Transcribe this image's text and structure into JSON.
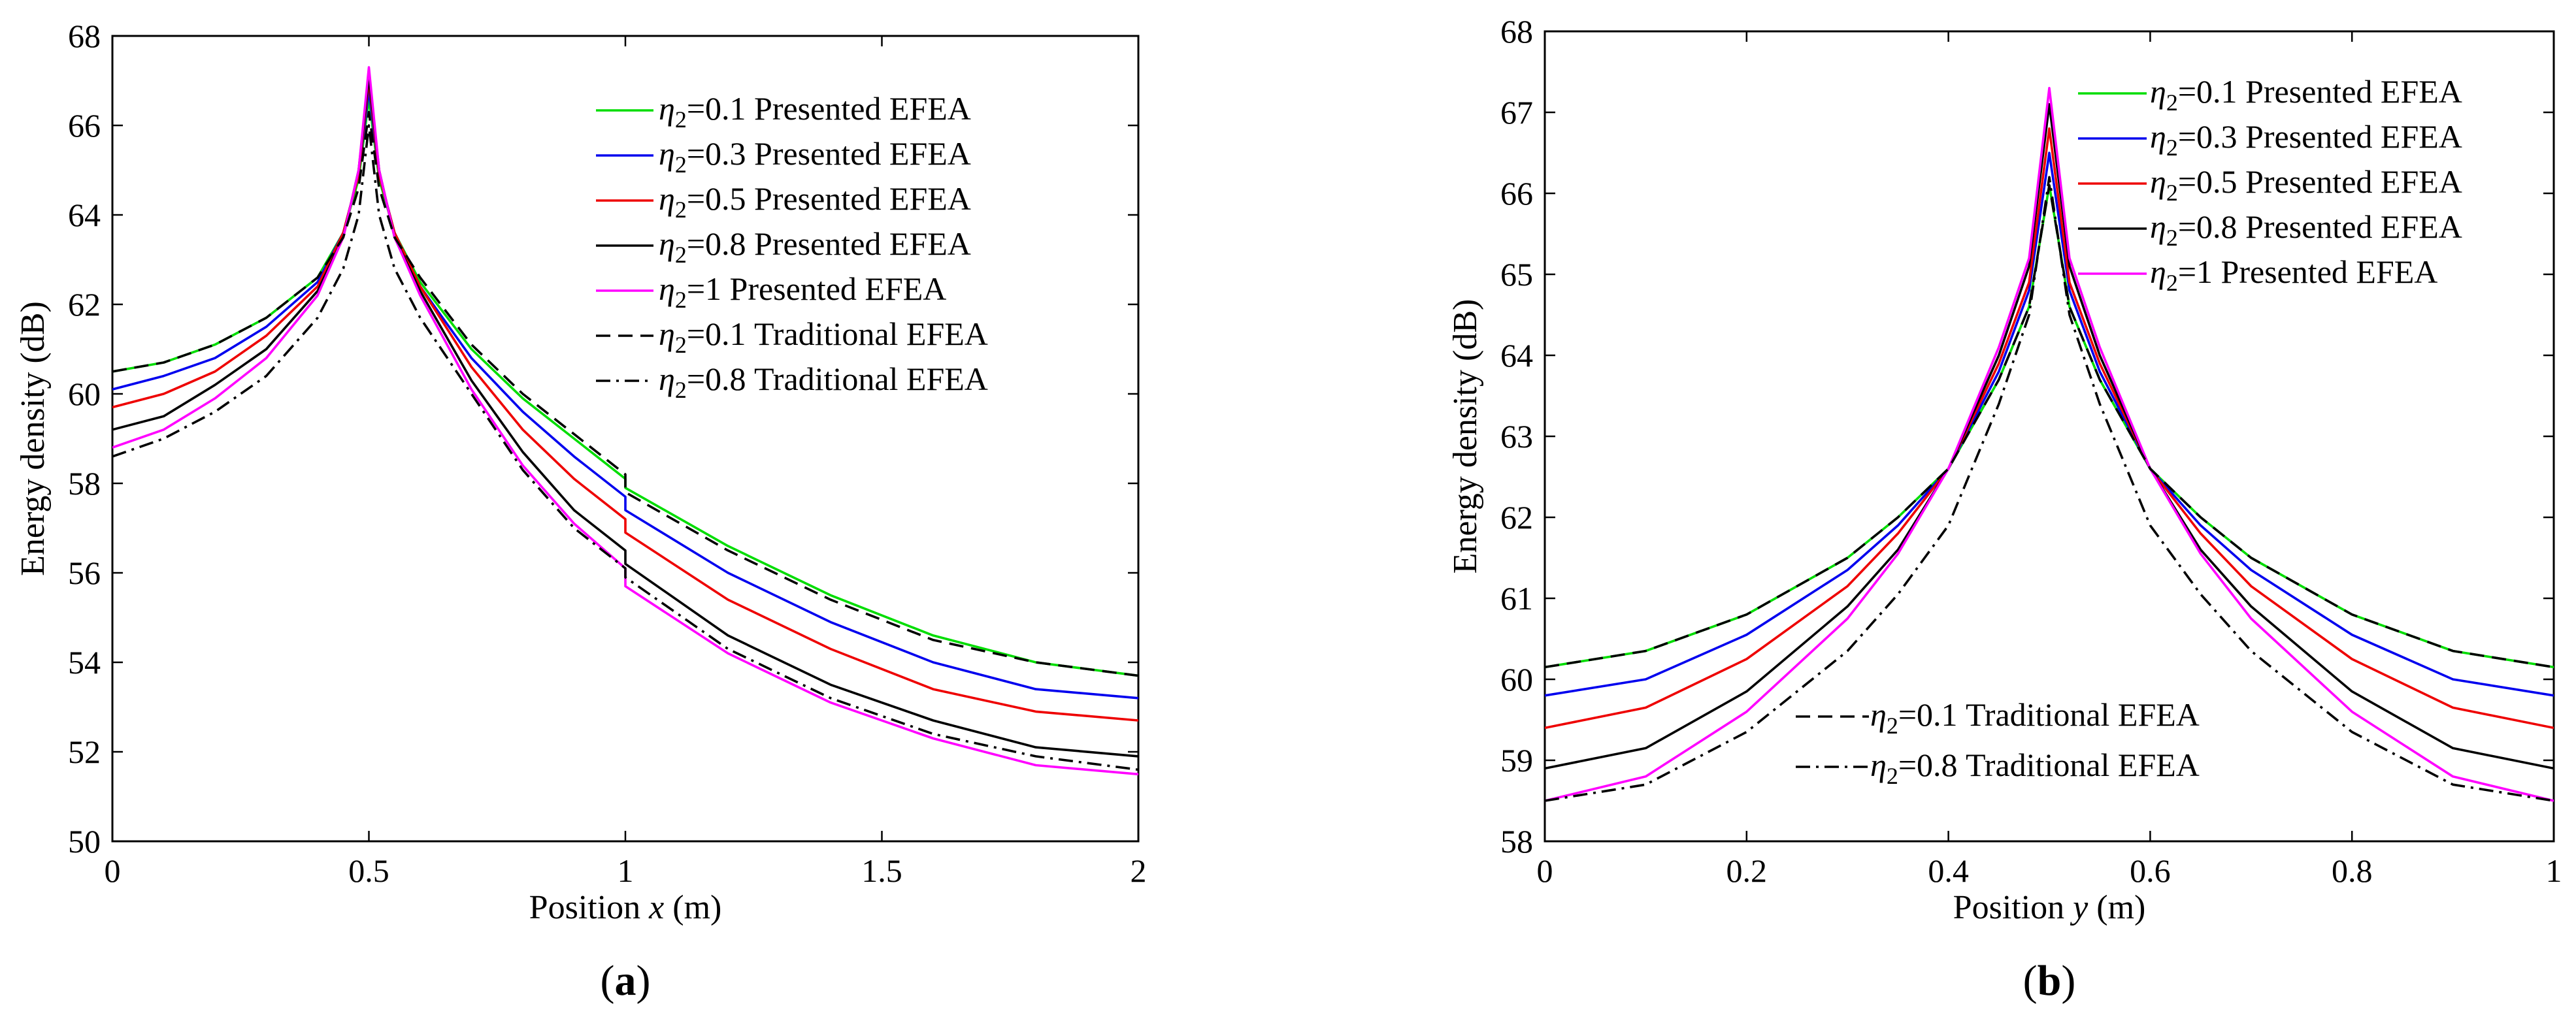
{
  "chart_data": [
    {
      "type": "line",
      "panel_label": "(a)",
      "panel_letter": "a",
      "xlabel_prefix": "Position ",
      "xlabel_var": "x",
      "xlabel_suffix": " (m)",
      "ylabel": "Energy density (dB)",
      "xlim": [
        0,
        2
      ],
      "ylim": [
        50,
        68
      ],
      "xticks": [
        0,
        0.5,
        1,
        1.5,
        2
      ],
      "xtick_labels": [
        "0",
        "0.5",
        "1",
        "1.5",
        "2"
      ],
      "yticks": [
        50,
        52,
        54,
        56,
        58,
        60,
        62,
        64,
        66,
        68
      ],
      "ytick_labels": [
        "50",
        "52",
        "54",
        "56",
        "58",
        "60",
        "62",
        "64",
        "66",
        "68"
      ],
      "grid": false,
      "legend_position": "top-right",
      "series": [
        {
          "name": "η2=0.1 Presented EFEA",
          "eta": "0.1",
          "method": "Presented EFEA",
          "color": "#00dd00",
          "dash": "solid",
          "x": [
            0,
            0.1,
            0.2,
            0.3,
            0.4,
            0.45,
            0.48,
            0.5,
            0.52,
            0.55,
            0.6,
            0.7,
            0.8,
            0.9,
            1.0,
            1.0,
            1.2,
            1.4,
            1.6,
            1.8,
            2.0
          ],
          "y": [
            60.5,
            60.7,
            61.1,
            61.7,
            62.6,
            63.6,
            64.8,
            66.6,
            64.8,
            63.6,
            62.5,
            61.0,
            59.9,
            59.0,
            58.1,
            57.9,
            56.6,
            55.5,
            54.6,
            54.0,
            53.7
          ]
        },
        {
          "name": "η2=0.3 Presented EFEA",
          "eta": "0.3",
          "method": "Presented EFEA",
          "color": "#0000ee",
          "dash": "solid",
          "x": [
            0,
            0.1,
            0.2,
            0.3,
            0.4,
            0.45,
            0.48,
            0.5,
            0.52,
            0.55,
            0.6,
            0.7,
            0.8,
            0.9,
            1.0,
            1.0,
            1.2,
            1.4,
            1.6,
            1.8,
            2.0
          ],
          "y": [
            60.1,
            60.4,
            60.8,
            61.5,
            62.5,
            63.6,
            64.9,
            66.8,
            64.9,
            63.6,
            62.4,
            60.8,
            59.6,
            58.6,
            57.7,
            57.4,
            56.0,
            54.9,
            54.0,
            53.4,
            53.2
          ]
        },
        {
          "name": "η2=0.5 Presented EFEA",
          "eta": "0.5",
          "method": "Presented EFEA",
          "color": "#ee0000",
          "dash": "solid",
          "x": [
            0,
            0.1,
            0.2,
            0.3,
            0.4,
            0.45,
            0.48,
            0.5,
            0.52,
            0.55,
            0.6,
            0.7,
            0.8,
            0.9,
            1.0,
            1.0,
            1.2,
            1.4,
            1.6,
            1.8,
            2.0
          ],
          "y": [
            59.7,
            60.0,
            60.5,
            61.3,
            62.4,
            63.6,
            64.9,
            67.0,
            64.9,
            63.6,
            62.4,
            60.6,
            59.2,
            58.1,
            57.2,
            56.9,
            55.4,
            54.3,
            53.4,
            52.9,
            52.7
          ]
        },
        {
          "name": "η2=0.8 Presented EFEA",
          "eta": "0.8",
          "method": "Presented EFEA",
          "color": "#000000",
          "dash": "solid",
          "x": [
            0,
            0.1,
            0.2,
            0.3,
            0.4,
            0.45,
            0.48,
            0.5,
            0.52,
            0.55,
            0.6,
            0.7,
            0.8,
            0.9,
            1.0,
            1.0,
            1.2,
            1.4,
            1.6,
            1.8,
            2.0
          ],
          "y": [
            59.2,
            59.5,
            60.2,
            61.0,
            62.3,
            63.5,
            65.0,
            67.1,
            65.0,
            63.5,
            62.3,
            60.3,
            58.7,
            57.4,
            56.5,
            56.2,
            54.6,
            53.5,
            52.7,
            52.1,
            51.9
          ]
        },
        {
          "name": "η2=1 Presented EFEA",
          "eta": "1",
          "method": "Presented EFEA",
          "color": "#ff00ff",
          "dash": "solid",
          "x": [
            0,
            0.1,
            0.2,
            0.3,
            0.4,
            0.45,
            0.48,
            0.5,
            0.52,
            0.55,
            0.6,
            0.7,
            0.8,
            0.9,
            1.0,
            1.0,
            1.2,
            1.4,
            1.6,
            1.8,
            2.0
          ],
          "y": [
            58.8,
            59.2,
            59.9,
            60.8,
            62.2,
            63.5,
            65.0,
            67.3,
            65.0,
            63.5,
            62.2,
            60.1,
            58.4,
            57.1,
            56.1,
            55.7,
            54.2,
            53.1,
            52.3,
            51.7,
            51.5
          ]
        },
        {
          "name": "η2=0.1 Traditional EFEA",
          "eta": "0.1",
          "method": "Traditional EFEA",
          "color": "#000000",
          "dash": "dash",
          "x": [
            0,
            0.1,
            0.2,
            0.3,
            0.4,
            0.45,
            0.48,
            0.5,
            0.52,
            0.55,
            0.6,
            0.7,
            0.8,
            0.9,
            1.0,
            1.0,
            1.2,
            1.4,
            1.6,
            1.8,
            2.0
          ],
          "y": [
            60.5,
            60.7,
            61.1,
            61.7,
            62.6,
            63.5,
            64.6,
            66.3,
            64.6,
            63.5,
            62.6,
            61.1,
            60.0,
            59.1,
            58.2,
            57.8,
            56.5,
            55.4,
            54.5,
            54.0,
            53.7
          ]
        },
        {
          "name": "η2=0.8 Traditional EFEA",
          "eta": "0.8",
          "method": "Traditional EFEA",
          "color": "#000000",
          "dash": "dashdot",
          "x": [
            0,
            0.1,
            0.2,
            0.3,
            0.4,
            0.45,
            0.48,
            0.5,
            0.52,
            0.55,
            0.6,
            0.7,
            0.8,
            0.9,
            1.0,
            1.0,
            1.2,
            1.4,
            1.6,
            1.8,
            2.0
          ],
          "y": [
            58.6,
            59.0,
            59.6,
            60.4,
            61.7,
            62.8,
            64.0,
            66.0,
            64.0,
            62.8,
            61.7,
            60.0,
            58.3,
            57.0,
            56.1,
            55.9,
            54.3,
            53.2,
            52.4,
            51.9,
            51.6
          ]
        }
      ]
    },
    {
      "type": "line",
      "panel_label": "(b)",
      "panel_letter": "b",
      "xlabel_prefix": "Position ",
      "xlabel_var": "y",
      "xlabel_suffix": " (m)",
      "ylabel": "Energy density (dB)",
      "xlim": [
        0,
        1
      ],
      "ylim": [
        58,
        68
      ],
      "xticks": [
        0,
        0.2,
        0.4,
        0.6,
        0.8,
        1
      ],
      "xtick_labels": [
        "0",
        "0.2",
        "0.4",
        "0.6",
        "0.8",
        "1"
      ],
      "yticks": [
        58,
        59,
        60,
        61,
        62,
        63,
        64,
        65,
        66,
        67,
        68
      ],
      "ytick_labels": [
        "58",
        "59",
        "60",
        "61",
        "62",
        "63",
        "64",
        "65",
        "66",
        "67",
        "68"
      ],
      "grid": false,
      "legend_position": "top-right",
      "legend2_position": "bottom-center",
      "series": [
        {
          "name": "η2=0.1 Presented EFEA",
          "eta": "0.1",
          "method": "Presented EFEA",
          "color": "#00dd00",
          "dash": "solid",
          "x": [
            0,
            0.1,
            0.2,
            0.3,
            0.35,
            0.4,
            0.45,
            0.48,
            0.5,
            0.52,
            0.55,
            0.6,
            0.65,
            0.7,
            0.8,
            0.9,
            1.0
          ],
          "y": [
            60.15,
            60.35,
            60.8,
            61.5,
            62.0,
            62.6,
            63.7,
            64.6,
            66.1,
            64.6,
            63.7,
            62.6,
            62.0,
            61.5,
            60.8,
            60.35,
            60.15
          ]
        },
        {
          "name": "η2=0.3 Presented EFEA",
          "eta": "0.3",
          "method": "Presented EFEA",
          "color": "#0000ee",
          "dash": "solid",
          "x": [
            0,
            0.1,
            0.2,
            0.3,
            0.35,
            0.4,
            0.45,
            0.48,
            0.5,
            0.52,
            0.55,
            0.6,
            0.65,
            0.7,
            0.8,
            0.9,
            1.0
          ],
          "y": [
            59.8,
            60.0,
            60.55,
            61.35,
            61.9,
            62.6,
            63.8,
            64.8,
            66.5,
            64.8,
            63.8,
            62.6,
            61.9,
            61.35,
            60.55,
            60.0,
            59.8
          ]
        },
        {
          "name": "η2=0.5 Presented EFEA",
          "eta": "0.5",
          "method": "Presented EFEA",
          "color": "#ee0000",
          "dash": "solid",
          "x": [
            0,
            0.1,
            0.2,
            0.3,
            0.35,
            0.4,
            0.45,
            0.48,
            0.5,
            0.52,
            0.55,
            0.6,
            0.65,
            0.7,
            0.8,
            0.9,
            1.0
          ],
          "y": [
            59.4,
            59.65,
            60.25,
            61.15,
            61.8,
            62.6,
            63.9,
            64.9,
            66.8,
            64.9,
            63.9,
            62.6,
            61.8,
            61.15,
            60.25,
            59.65,
            59.4
          ]
        },
        {
          "name": "η2=0.8 Presented EFEA",
          "eta": "0.8",
          "method": "Presented EFEA",
          "color": "#000000",
          "dash": "solid",
          "x": [
            0,
            0.1,
            0.2,
            0.3,
            0.35,
            0.4,
            0.45,
            0.48,
            0.5,
            0.52,
            0.55,
            0.6,
            0.65,
            0.7,
            0.8,
            0.9,
            1.0
          ],
          "y": [
            58.9,
            59.15,
            59.85,
            60.9,
            61.6,
            62.6,
            64.0,
            65.1,
            67.1,
            65.1,
            64.0,
            62.6,
            61.6,
            60.9,
            59.85,
            59.15,
            58.9
          ]
        },
        {
          "name": "η2=1 Presented EFEA",
          "eta": "1",
          "method": "Presented EFEA",
          "color": "#ff00ff",
          "dash": "solid",
          "x": [
            0,
            0.1,
            0.2,
            0.3,
            0.35,
            0.4,
            0.45,
            0.48,
            0.5,
            0.52,
            0.55,
            0.6,
            0.65,
            0.7,
            0.8,
            0.9,
            1.0
          ],
          "y": [
            58.5,
            58.8,
            59.6,
            60.75,
            61.55,
            62.6,
            64.1,
            65.2,
            67.3,
            65.2,
            64.1,
            62.6,
            61.55,
            60.75,
            59.6,
            58.8,
            58.5
          ]
        },
        {
          "name": "η2=0.1 Traditional EFEA",
          "eta": "0.1",
          "method": "Traditional EFEA",
          "color": "#000000",
          "dash": "dash",
          "x": [
            0,
            0.1,
            0.2,
            0.3,
            0.35,
            0.4,
            0.45,
            0.48,
            0.5,
            0.52,
            0.55,
            0.6,
            0.65,
            0.7,
            0.8,
            0.9,
            1.0
          ],
          "y": [
            60.15,
            60.35,
            60.8,
            61.5,
            62.0,
            62.6,
            63.7,
            64.6,
            66.1,
            64.6,
            63.7,
            62.6,
            62.0,
            61.5,
            60.8,
            60.35,
            60.15
          ]
        },
        {
          "name": "η2=0.8 Traditional EFEA",
          "eta": "0.8",
          "method": "Traditional EFEA",
          "color": "#000000",
          "dash": "dashdot",
          "x": [
            0,
            0.1,
            0.2,
            0.3,
            0.35,
            0.4,
            0.45,
            0.48,
            0.5,
            0.52,
            0.55,
            0.6,
            0.65,
            0.7,
            0.8,
            0.9,
            1.0
          ],
          "y": [
            58.5,
            58.7,
            59.35,
            60.35,
            61.05,
            61.9,
            63.4,
            64.5,
            66.2,
            64.5,
            63.4,
            61.9,
            61.05,
            60.35,
            59.35,
            58.7,
            58.5
          ]
        }
      ]
    }
  ]
}
